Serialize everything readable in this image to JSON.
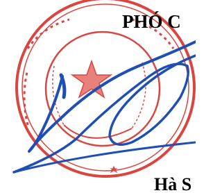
{
  "heading": "PHÓ C",
  "place": "Hà S"
}
